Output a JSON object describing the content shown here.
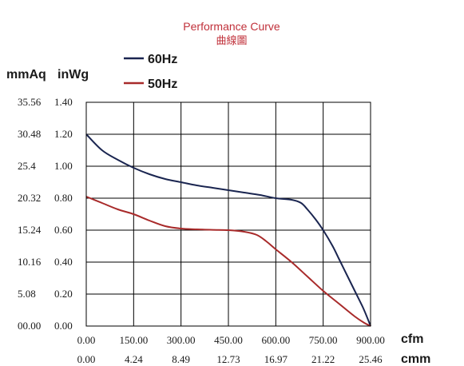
{
  "chart_data": {
    "type": "line",
    "title": "Performance Curve",
    "subtitle": "曲線圖",
    "left_unit_label": "mmAq",
    "right_unit_label": "inWg",
    "x_unit_top": "cfm",
    "x_unit_bottom": "cmm",
    "xlim": [
      0,
      900
    ],
    "ylim": [
      0,
      1.4
    ],
    "grid": true,
    "legend_position": "top-left",
    "x_ticks": [
      "0.00",
      "150.00",
      "300.00",
      "450.00",
      "600.00",
      "750.00",
      "900.00"
    ],
    "x_ticks_secondary": [
      "0.00",
      "4.24",
      "8.49",
      "12.73",
      "16.97",
      "21.22",
      "25.46"
    ],
    "y_ticks": [
      "0.00",
      "0.20",
      "0.40",
      "0.60",
      "0.80",
      "1.00",
      "1.20",
      "1.40"
    ],
    "y_ticks_secondary": [
      "00.00",
      "5.08",
      "10.16",
      "15.24",
      "20.32",
      "25.4",
      "30.48",
      "35.56"
    ],
    "series": [
      {
        "name": "60Hz",
        "color": "#1a2550",
        "points": [
          [
            0,
            1.2
          ],
          [
            50,
            1.1
          ],
          [
            100,
            1.04
          ],
          [
            150,
            0.99
          ],
          [
            200,
            0.95
          ],
          [
            250,
            0.92
          ],
          [
            300,
            0.9
          ],
          [
            350,
            0.88
          ],
          [
            400,
            0.865
          ],
          [
            450,
            0.85
          ],
          [
            500,
            0.835
          ],
          [
            550,
            0.82
          ],
          [
            600,
            0.8
          ],
          [
            650,
            0.79
          ],
          [
            680,
            0.77
          ],
          [
            700,
            0.73
          ],
          [
            725,
            0.67
          ],
          [
            750,
            0.6
          ],
          [
            780,
            0.5
          ],
          [
            800,
            0.42
          ],
          [
            825,
            0.32
          ],
          [
            850,
            0.22
          ],
          [
            875,
            0.12
          ],
          [
            890,
            0.05
          ],
          [
            900,
            0.0
          ]
        ]
      },
      {
        "name": "50Hz",
        "color": "#a82a2a",
        "points": [
          [
            0,
            0.81
          ],
          [
            50,
            0.77
          ],
          [
            100,
            0.73
          ],
          [
            150,
            0.7
          ],
          [
            200,
            0.66
          ],
          [
            250,
            0.625
          ],
          [
            300,
            0.61
          ],
          [
            350,
            0.605
          ],
          [
            400,
            0.602
          ],
          [
            450,
            0.6
          ],
          [
            500,
            0.59
          ],
          [
            540,
            0.57
          ],
          [
            570,
            0.53
          ],
          [
            600,
            0.48
          ],
          [
            650,
            0.4
          ],
          [
            700,
            0.31
          ],
          [
            750,
            0.22
          ],
          [
            800,
            0.14
          ],
          [
            850,
            0.06
          ],
          [
            880,
            0.02
          ],
          [
            900,
            0.0
          ]
        ]
      }
    ]
  }
}
